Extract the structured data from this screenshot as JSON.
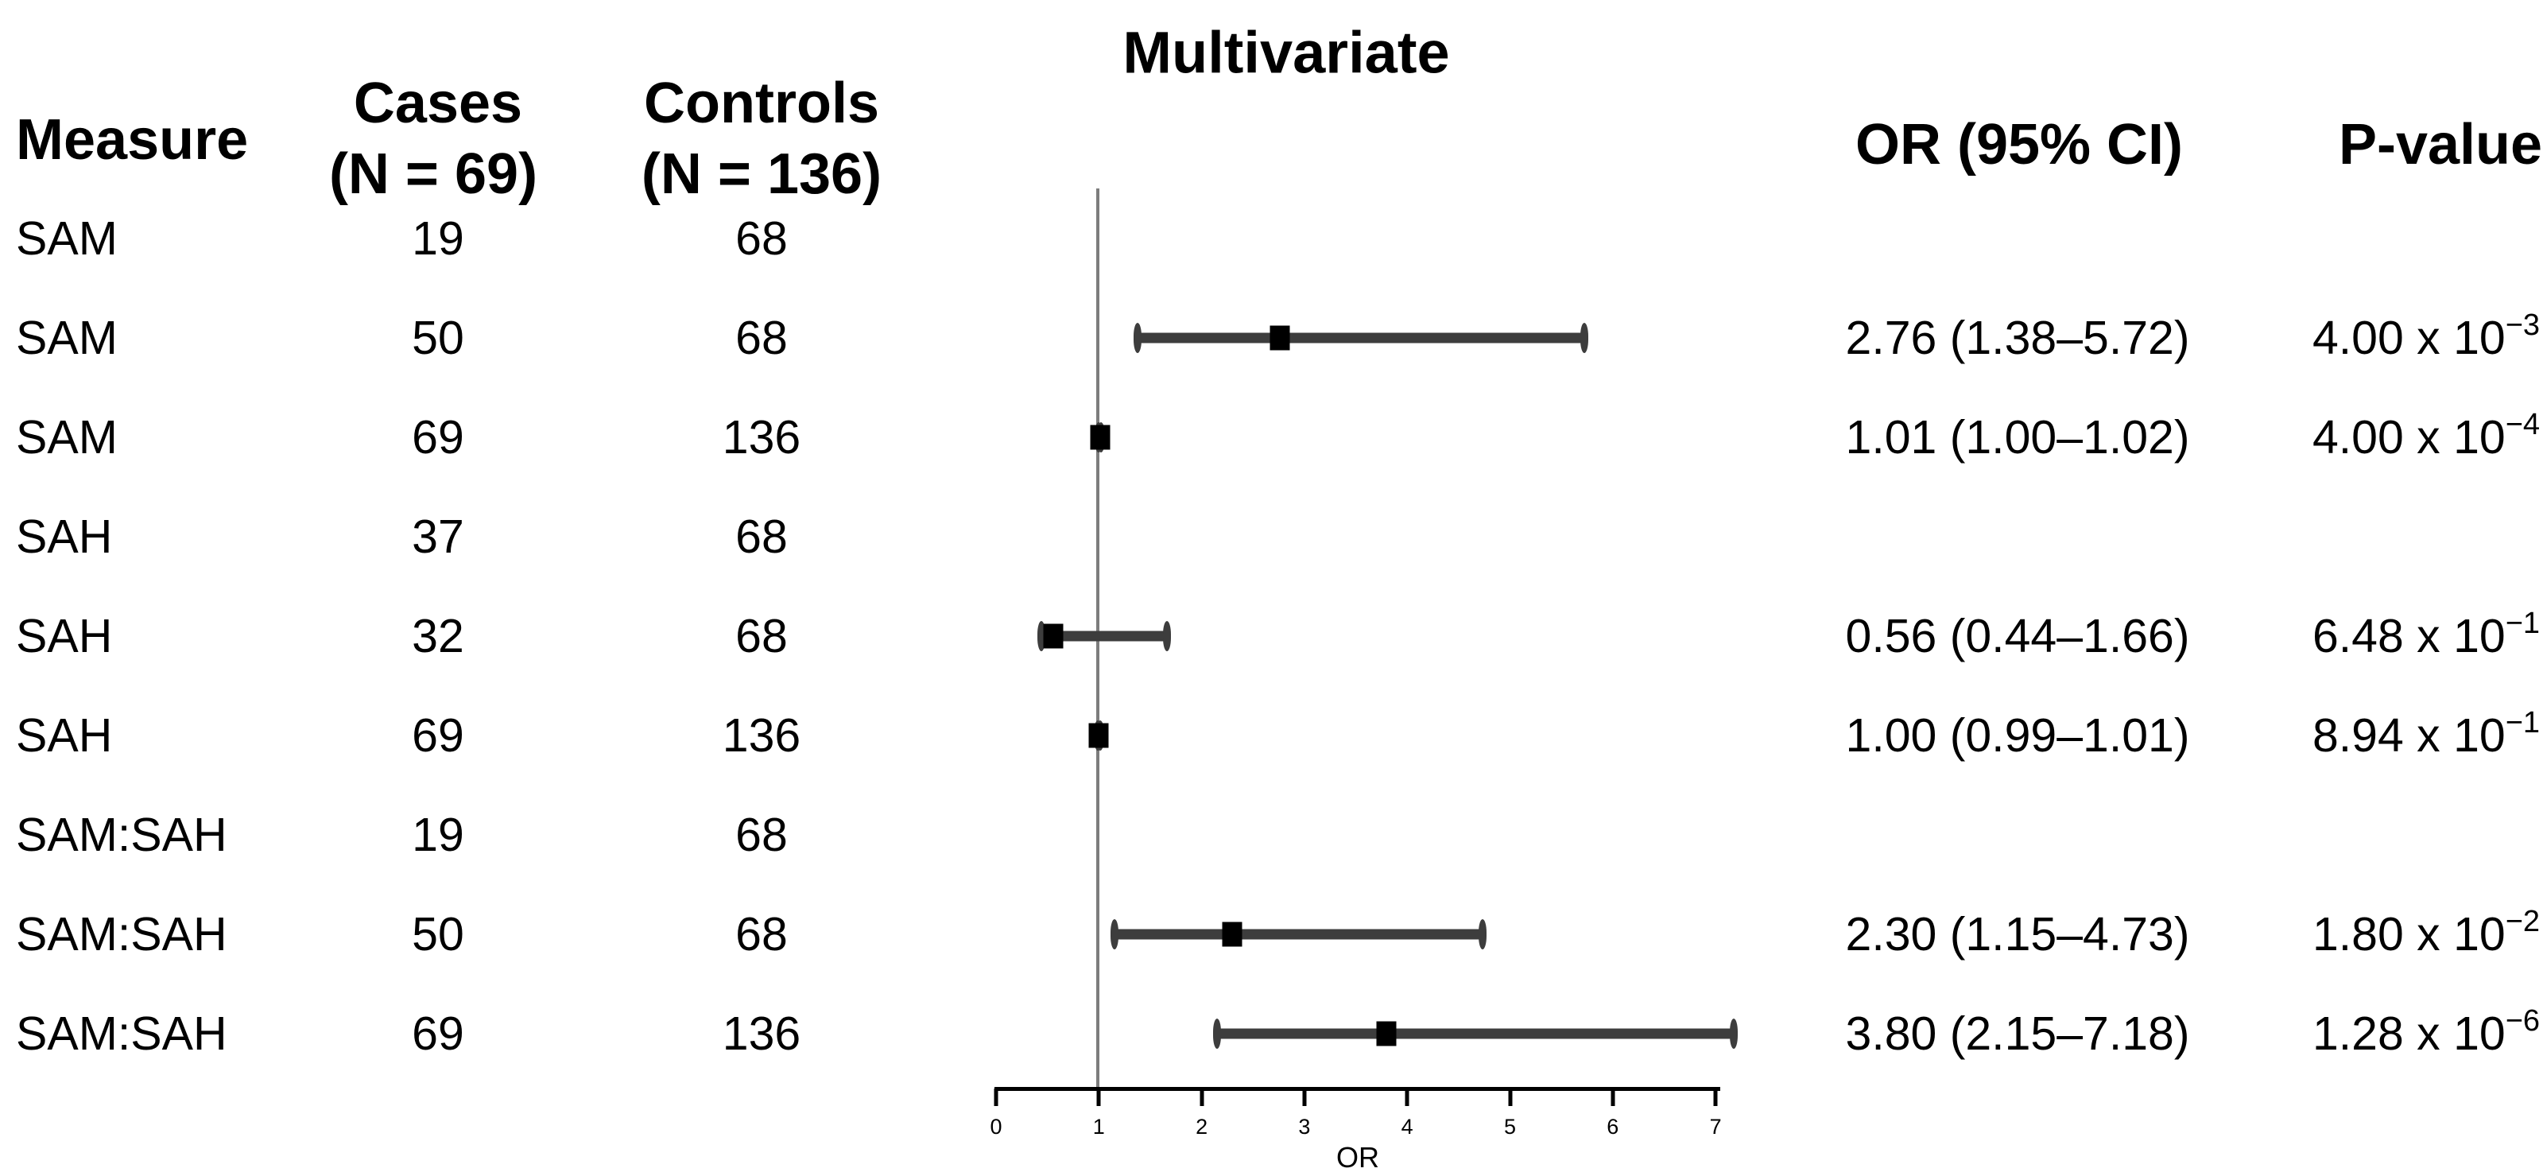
{
  "title": "Multivariate",
  "colors": {
    "background": "#ffffff",
    "text": "#000000",
    "ci_bar": "#3d3d3d",
    "or_marker": "#000000",
    "reference_line": "#7d7d7d",
    "axis": "#000000"
  },
  "table": {
    "headers": {
      "measure": "Measure",
      "cases_line1": "Cases",
      "cases_line2": "(N = 69)",
      "controls_line1": "Controls",
      "controls_line2": "(N = 136)",
      "or_ci": "OR (95% CI)",
      "p_value": "P-value"
    },
    "rows": [
      {
        "measure": "SAM",
        "cases": "19",
        "controls": "68",
        "or_ci": "",
        "p_base": "",
        "p_exp": ""
      },
      {
        "measure": "SAM",
        "cases": "50",
        "controls": "68",
        "or_ci": "2.76 (1.38–5.72)",
        "p_base": "4.00 x 10",
        "p_exp": "−3"
      },
      {
        "measure": "SAM",
        "cases": "69",
        "controls": "136",
        "or_ci": "1.01 (1.00–1.02)",
        "p_base": "4.00 x 10",
        "p_exp": "−4"
      },
      {
        "measure": "SAH",
        "cases": "37",
        "controls": "68",
        "or_ci": "",
        "p_base": "",
        "p_exp": ""
      },
      {
        "measure": "SAH",
        "cases": "32",
        "controls": "68",
        "or_ci": "0.56 (0.44–1.66)",
        "p_base": "6.48 x 10",
        "p_exp": "−1"
      },
      {
        "measure": "SAH",
        "cases": "69",
        "controls": "136",
        "or_ci": "1.00 (0.99–1.01)",
        "p_base": "8.94 x 10",
        "p_exp": "−1"
      },
      {
        "measure": "SAM:SAH",
        "cases": "19",
        "controls": "68",
        "or_ci": "",
        "p_base": "",
        "p_exp": ""
      },
      {
        "measure": "SAM:SAH",
        "cases": "50",
        "controls": "68",
        "or_ci": "2.30 (1.15–4.73)",
        "p_base": "1.80 x 10",
        "p_exp": "−2"
      },
      {
        "measure": "SAM:SAH",
        "cases": "69",
        "controls": "136",
        "or_ci": "3.80 (2.15–7.18)",
        "p_base": "1.28 x 10",
        "p_exp": "−6"
      }
    ]
  },
  "chart_data": {
    "type": "scatter",
    "subtype": "forest-plot",
    "title": "Multivariate",
    "xlabel": "OR",
    "xlim": [
      0,
      7.3
    ],
    "x_ticks": [
      0,
      1,
      2,
      3,
      4,
      5,
      6,
      7
    ],
    "reference_line_x": 1,
    "grid": false,
    "series": [
      {
        "name": "OR (95% CI)",
        "points": [
          {
            "label": "SAM",
            "cases": 19,
            "controls": 68,
            "or": null,
            "ci_low": null,
            "ci_high": null,
            "p": null
          },
          {
            "label": "SAM",
            "cases": 50,
            "controls": 68,
            "or": 2.76,
            "ci_low": 1.38,
            "ci_high": 5.72,
            "p": 0.004
          },
          {
            "label": "SAM",
            "cases": 69,
            "controls": 136,
            "or": 1.01,
            "ci_low": 1.0,
            "ci_high": 1.02,
            "p": 0.0004
          },
          {
            "label": "SAH",
            "cases": 37,
            "controls": 68,
            "or": null,
            "ci_low": null,
            "ci_high": null,
            "p": null
          },
          {
            "label": "SAH",
            "cases": 32,
            "controls": 68,
            "or": 0.56,
            "ci_low": 0.44,
            "ci_high": 1.66,
            "p": 0.648
          },
          {
            "label": "SAH",
            "cases": 69,
            "controls": 136,
            "or": 1.0,
            "ci_low": 0.99,
            "ci_high": 1.01,
            "p": 0.894
          },
          {
            "label": "SAM:SAH",
            "cases": 19,
            "controls": 68,
            "or": null,
            "ci_low": null,
            "ci_high": null,
            "p": null
          },
          {
            "label": "SAM:SAH",
            "cases": 50,
            "controls": 68,
            "or": 2.3,
            "ci_low": 1.15,
            "ci_high": 4.73,
            "p": 0.018
          },
          {
            "label": "SAM:SAH",
            "cases": 69,
            "controls": 136,
            "or": 3.8,
            "ci_low": 2.15,
            "ci_high": 7.18,
            "p": 1.28e-06
          }
        ]
      }
    ]
  }
}
